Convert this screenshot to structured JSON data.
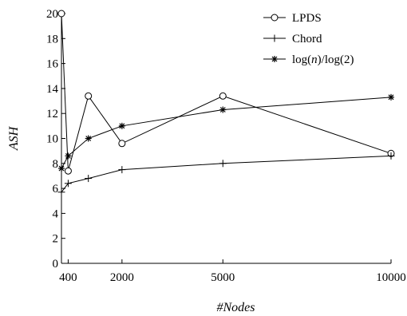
{
  "chart_data": {
    "type": "line",
    "xlabel": "#Nodes",
    "ylabel": "ASH",
    "xlim": [
      200,
      10000
    ],
    "ylim": [
      0,
      20
    ],
    "xticks": [
      400,
      2000,
      5000,
      10000
    ],
    "yticks": [
      0,
      2,
      4,
      6,
      8,
      10,
      12,
      14,
      16,
      18,
      20
    ],
    "grid": false,
    "legend_position": "top-right",
    "series": [
      {
        "name": "LPDS",
        "marker": "circle",
        "x": [
          200,
          400,
          1000,
          2000,
          5000,
          10000
        ],
        "y": [
          20.0,
          7.4,
          13.4,
          9.6,
          13.4,
          8.8
        ]
      },
      {
        "name": "Chord",
        "marker": "plus",
        "x": [
          200,
          400,
          1000,
          2000,
          5000,
          10000
        ],
        "y": [
          5.7,
          6.4,
          6.8,
          7.5,
          8.0,
          8.6
        ]
      },
      {
        "name": "log(n)/log(2)",
        "marker": "star",
        "x": [
          200,
          400,
          1000,
          2000,
          5000,
          10000
        ],
        "y": [
          7.6,
          8.6,
          10.0,
          11.0,
          12.3,
          13.3
        ]
      }
    ]
  }
}
